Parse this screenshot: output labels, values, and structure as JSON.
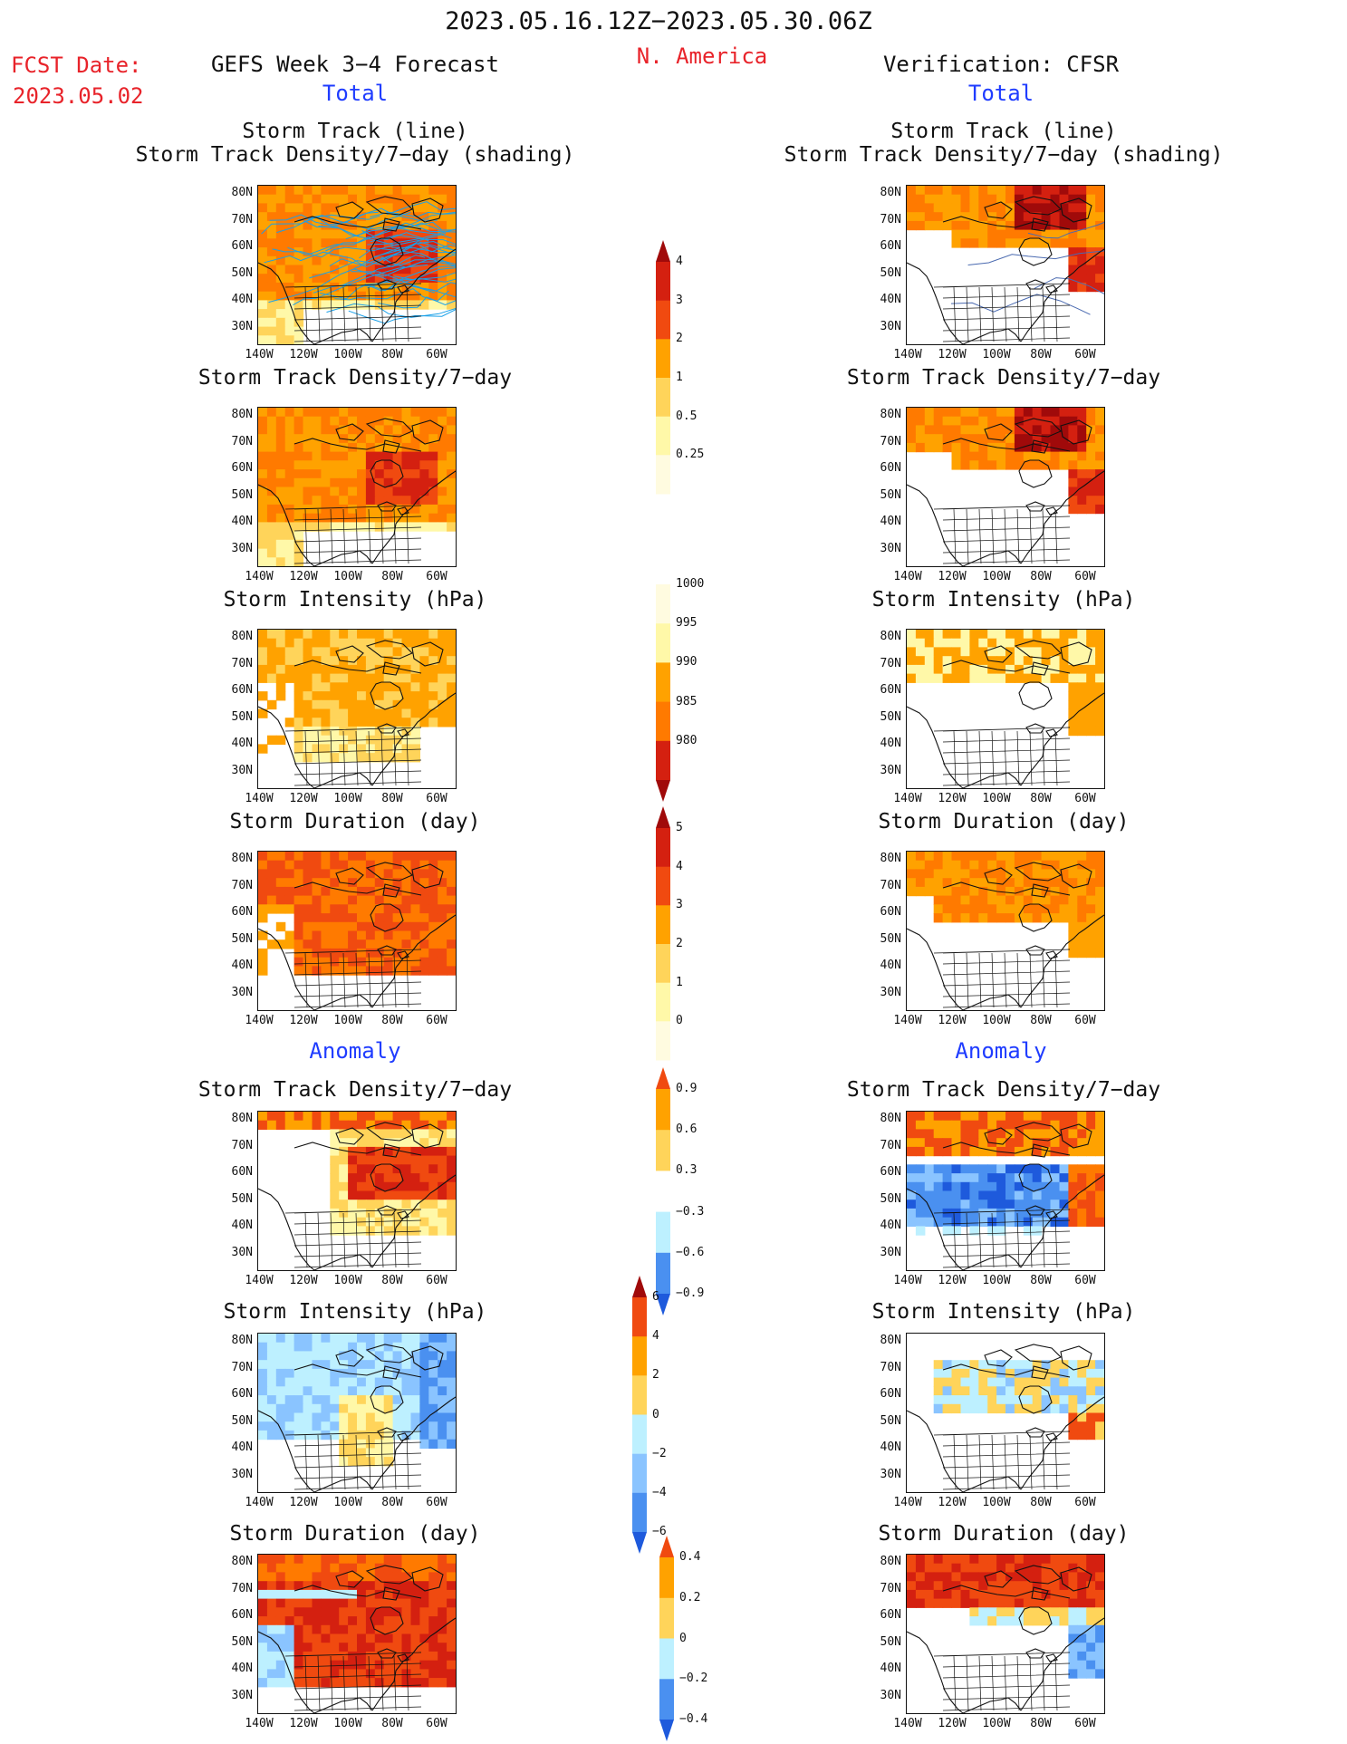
{
  "header": {
    "period": "2023.05.16.12Z−2023.05.30.06Z",
    "region": "N. America",
    "fcst_date_label": "FCST Date:",
    "fcst_date": "2023.05.02",
    "left_title": "GEFS Week 3−4 Forecast",
    "right_title": "Verification: CFSR",
    "left_section_total": "Total",
    "right_section_total": "Total",
    "left_section_anomaly": "Anomaly",
    "right_section_anomaly": "Anomaly"
  },
  "panels": [
    {
      "title1": "Storm Track (line)",
      "title2": "Storm Track Density/7−day (shading)"
    },
    {
      "title1": "Storm Track Density/7−day"
    },
    {
      "title1": "Storm Intensity (hPa)"
    },
    {
      "title1": "Storm Duration (day)"
    },
    {
      "title1": "Storm Track Density/7−day"
    },
    {
      "title1": "Storm Intensity (hPa)"
    },
    {
      "title1": "Storm Duration (day)"
    }
  ],
  "axes": {
    "lat_labels": [
      "80N",
      "70N",
      "60N",
      "50N",
      "40N",
      "30N"
    ],
    "lon_labels": [
      "140W",
      "120W",
      "100W",
      "80W",
      "60W"
    ]
  },
  "colorbars": [
    {
      "name": "density-total",
      "labels": [
        "4",
        "3",
        "2",
        "1",
        "0.5",
        "0.25"
      ]
    },
    {
      "name": "intensity-total",
      "labels": [
        "1000",
        "995",
        "990",
        "985",
        "980"
      ]
    },
    {
      "name": "duration-total",
      "labels": [
        "5",
        "4",
        "3",
        "2",
        "1",
        "0"
      ]
    },
    {
      "name": "density-anomaly",
      "labels": [
        "0.9",
        "0.6",
        "0.3",
        "−0.3",
        "−0.6",
        "−0.9"
      ]
    },
    {
      "name": "intensity-anomaly",
      "labels": [
        "6",
        "4",
        "2",
        "0",
        "−2",
        "−4",
        "−6"
      ]
    },
    {
      "name": "duration-anomaly",
      "labels": [
        "0.4",
        "0.2",
        "0",
        "−0.2",
        "−0.4"
      ]
    }
  ],
  "colors": {
    "yellow_light": "#fff8a8",
    "yellow": "#ffd45a",
    "orange_light": "#ffa200",
    "orange": "#ff7a00",
    "red_orange": "#f04a10",
    "red": "#d42010",
    "dark_red": "#a00a0a",
    "blue_light": "#bdf0ff",
    "blue": "#8ac4ff",
    "blue_mid": "#4a90f0",
    "blue_dark": "#1e5adc",
    "track_line": "#1aa0e8"
  }
}
